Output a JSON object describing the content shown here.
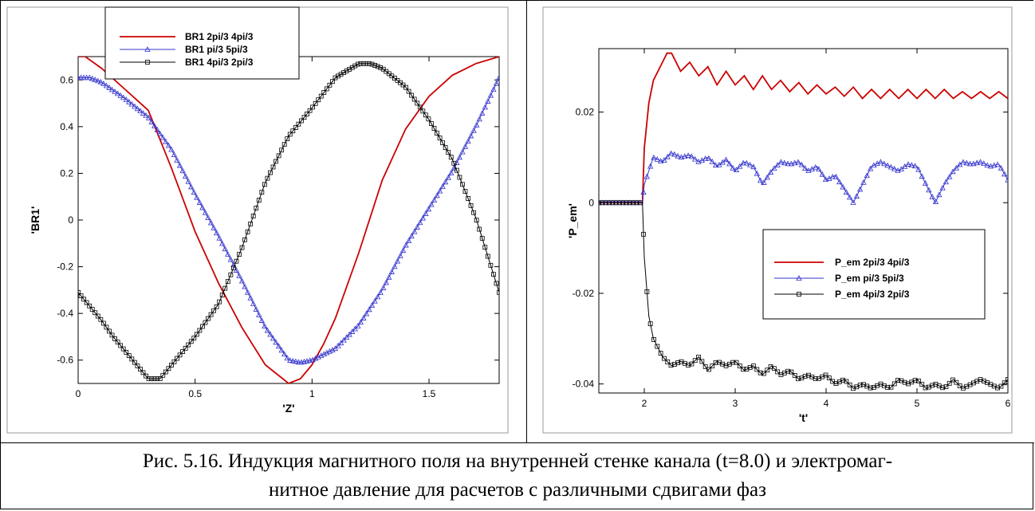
{
  "caption": {
    "line1": "Рис. 5.16. Индукция магнитного поля на внутренней стенке канала (t=8.0) и электромаг-",
    "line2": "нитное давление для расчетов с различными сдвигами фаз"
  },
  "chart_data": [
    {
      "type": "line",
      "xlabel": "'Z'",
      "ylabel": "'BR1'",
      "xlim": [
        0,
        1.8
      ],
      "ylim": [
        -0.7,
        0.7
      ],
      "xticks": [
        0,
        0.5,
        1,
        1.5
      ],
      "xtick_labels": [
        "0",
        "0.5",
        "1",
        "1.5"
      ],
      "yticks": [
        -0.6,
        -0.4,
        -0.2,
        0,
        0.2,
        0.4,
        0.6
      ],
      "ytick_labels": [
        "-0.6",
        "-0.4",
        "-0.2",
        "0",
        "0.2",
        "0.4",
        "0.6"
      ],
      "legend_position": "top-center",
      "series": [
        {
          "name": "BR1 2pi/3 4pi/3",
          "color": "#cc0000",
          "marker": "none",
          "x": [
            0,
            0.03,
            0.1,
            0.2,
            0.3,
            0.4,
            0.5,
            0.6,
            0.7,
            0.8,
            0.9,
            0.95,
            1.0,
            1.05,
            1.1,
            1.2,
            1.3,
            1.4,
            1.5,
            1.6,
            1.7,
            1.8
          ],
          "y": [
            0.7,
            0.7,
            0.65,
            0.56,
            0.47,
            0.22,
            -0.05,
            -0.27,
            -0.46,
            -0.62,
            -0.7,
            -0.68,
            -0.62,
            -0.53,
            -0.42,
            -0.14,
            0.17,
            0.39,
            0.53,
            0.62,
            0.67,
            0.7
          ]
        },
        {
          "name": "BR1 pi/3 5pi/3",
          "color": "#3333cc",
          "marker": "triangle",
          "x": [
            0,
            0.05,
            0.1,
            0.2,
            0.3,
            0.4,
            0.5,
            0.6,
            0.7,
            0.8,
            0.9,
            0.95,
            1.0,
            1.1,
            1.2,
            1.3,
            1.4,
            1.5,
            1.6,
            1.7,
            1.8
          ],
          "y": [
            0.61,
            0.61,
            0.59,
            0.52,
            0.44,
            0.3,
            0.11,
            -0.07,
            -0.26,
            -0.46,
            -0.6,
            -0.61,
            -0.6,
            -0.55,
            -0.45,
            -0.3,
            -0.11,
            0.05,
            0.21,
            0.4,
            0.61
          ]
        },
        {
          "name": "BR1 4pi/3 2pi/3",
          "color": "#000000",
          "marker": "square",
          "x": [
            0,
            0.05,
            0.1,
            0.15,
            0.2,
            0.25,
            0.3,
            0.35,
            0.4,
            0.5,
            0.6,
            0.7,
            0.8,
            0.9,
            1.0,
            1.1,
            1.15,
            1.2,
            1.25,
            1.3,
            1.4,
            1.5,
            1.6,
            1.7,
            1.8
          ],
          "y": [
            -0.31,
            -0.37,
            -0.43,
            -0.5,
            -0.56,
            -0.62,
            -0.68,
            -0.68,
            -0.62,
            -0.5,
            -0.36,
            -0.12,
            0.16,
            0.36,
            0.48,
            0.61,
            0.64,
            0.67,
            0.67,
            0.65,
            0.57,
            0.43,
            0.26,
            0.01,
            -0.31
          ]
        }
      ]
    },
    {
      "type": "line",
      "xlabel": "'t'",
      "ylabel": "'P_em'",
      "xlim": [
        1.5,
        6
      ],
      "ylim": [
        -0.042,
        0.034
      ],
      "xticks": [
        2,
        3,
        4,
        5,
        6
      ],
      "xtick_labels": [
        "2",
        "3",
        "4",
        "5",
        "6"
      ],
      "yticks": [
        -0.04,
        -0.02,
        0,
        0.02
      ],
      "ytick_labels": [
        "-0.04",
        "-0.02",
        "0",
        "0.02"
      ],
      "legend_position": "center-right",
      "series": [
        {
          "name": "P_em 2pi/3 4pi/3",
          "color": "#cc0000",
          "marker": "none",
          "x": [
            1.5,
            1.98,
            2.0,
            2.05,
            2.1,
            2.2,
            2.25,
            2.3,
            2.4,
            2.5,
            2.6,
            2.7,
            2.8,
            2.9,
            3.0,
            3.1,
            3.2,
            3.3,
            3.4,
            3.5,
            3.6,
            3.7,
            3.8,
            3.9,
            4.0,
            4.1,
            4.2,
            4.3,
            4.4,
            4.5,
            4.6,
            4.7,
            4.8,
            4.9,
            5.0,
            5.1,
            5.2,
            5.3,
            5.4,
            5.5,
            5.6,
            5.7,
            5.8,
            5.9,
            6.0
          ],
          "y": [
            0,
            0,
            0.012,
            0.022,
            0.027,
            0.031,
            0.033,
            0.033,
            0.029,
            0.031,
            0.028,
            0.03,
            0.026,
            0.029,
            0.026,
            0.028,
            0.025,
            0.028,
            0.025,
            0.027,
            0.0245,
            0.0265,
            0.024,
            0.026,
            0.024,
            0.0255,
            0.0235,
            0.0255,
            0.023,
            0.025,
            0.023,
            0.025,
            0.023,
            0.025,
            0.023,
            0.025,
            0.023,
            0.025,
            0.023,
            0.0245,
            0.023,
            0.0245,
            0.023,
            0.0245,
            0.023
          ]
        },
        {
          "name": "P_em pi/3 5pi/3",
          "color": "#3333cc",
          "marker": "triangle",
          "x": [
            1.5,
            1.98,
            2.0,
            2.1,
            2.2,
            2.3,
            2.4,
            2.5,
            2.6,
            2.7,
            2.8,
            2.9,
            3.0,
            3.1,
            3.2,
            3.3,
            3.4,
            3.5,
            3.6,
            3.7,
            3.8,
            3.9,
            4.0,
            4.1,
            4.2,
            4.3,
            4.4,
            4.5,
            4.6,
            4.7,
            4.8,
            4.9,
            5.0,
            5.1,
            5.2,
            5.3,
            5.4,
            5.5,
            5.6,
            5.7,
            5.8,
            5.9,
            6.0
          ],
          "y": [
            0,
            0,
            0.004,
            0.01,
            0.009,
            0.011,
            0.01,
            0.0105,
            0.009,
            0.01,
            0.008,
            0.0095,
            0.007,
            0.009,
            0.008,
            0.004,
            0.007,
            0.009,
            0.0085,
            0.009,
            0.007,
            0.008,
            0.005,
            0.006,
            0.003,
            0.0,
            0.004,
            0.008,
            0.009,
            0.008,
            0.007,
            0.0085,
            0.008,
            0.004,
            0.0,
            0.004,
            0.007,
            0.009,
            0.0085,
            0.009,
            0.008,
            0.0085,
            0.005
          ]
        },
        {
          "name": "P_em 4pi/3 2pi/3",
          "color": "#000000",
          "marker": "square",
          "x": [
            1.5,
            1.98,
            2.0,
            2.05,
            2.1,
            2.15,
            2.2,
            2.3,
            2.4,
            2.5,
            2.6,
            2.7,
            2.8,
            2.9,
            3.0,
            3.1,
            3.2,
            3.3,
            3.4,
            3.5,
            3.6,
            3.7,
            3.8,
            3.9,
            4.0,
            4.1,
            4.2,
            4.3,
            4.4,
            4.5,
            4.6,
            4.7,
            4.8,
            4.9,
            5.0,
            5.1,
            5.2,
            5.3,
            5.4,
            5.5,
            5.6,
            5.7,
            5.8,
            5.9,
            6.0
          ],
          "y": [
            0,
            0,
            -0.012,
            -0.025,
            -0.03,
            -0.032,
            -0.034,
            -0.036,
            -0.035,
            -0.036,
            -0.034,
            -0.037,
            -0.035,
            -0.036,
            -0.035,
            -0.037,
            -0.036,
            -0.038,
            -0.036,
            -0.038,
            -0.037,
            -0.039,
            -0.038,
            -0.039,
            -0.038,
            -0.04,
            -0.039,
            -0.041,
            -0.04,
            -0.041,
            -0.04,
            -0.041,
            -0.039,
            -0.04,
            -0.039,
            -0.041,
            -0.04,
            -0.041,
            -0.039,
            -0.041,
            -0.04,
            -0.039,
            -0.04,
            -0.041,
            -0.039
          ]
        }
      ]
    }
  ]
}
